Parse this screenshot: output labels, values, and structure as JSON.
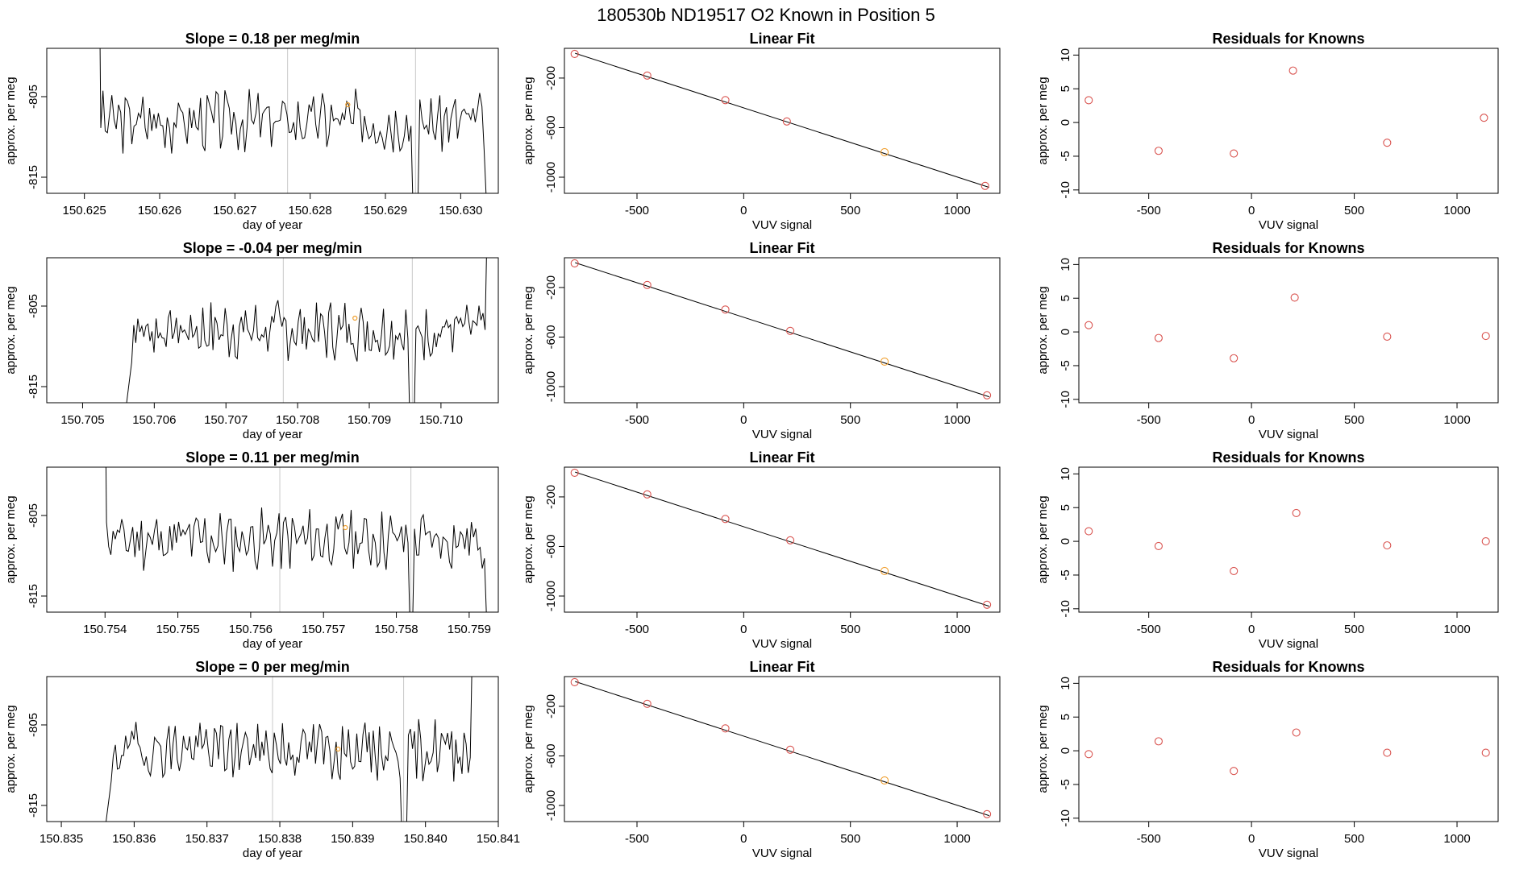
{
  "figure_title": "180530b      ND19517   O2 Known in Position  5",
  "colors": {
    "axis": "#000000",
    "trace": "#000000",
    "marker_red": "#d9534f",
    "marker_orange": "#f0a030",
    "vline": "#c8c8c8"
  },
  "chart_data": [
    {
      "type": "line",
      "title": "Slope =  0.18  per meg/min",
      "xlabel": "day of year",
      "ylabel": "approx. per meg",
      "xlim": [
        150.6245,
        150.6305
      ],
      "ylim": [
        -817,
        -799
      ],
      "xticks": [
        "150.626",
        "150.627",
        "150.628",
        "150.629",
        "150.630",
        "150.625"
      ],
      "xtick_values": [
        150.626,
        150.627,
        150.628,
        150.629,
        150.63,
        150.625
      ],
      "yticks": [
        -805,
        -815
      ],
      "vlines": [
        150.6277,
        150.6294
      ],
      "trace_start": 150.6251,
      "trace_end": 150.6304,
      "orange_point": {
        "x": 150.6285,
        "y": -806.0
      },
      "seed": 3
    },
    {
      "type": "scatter",
      "title": "Linear Fit",
      "xlabel": "VUV signal",
      "ylabel": "approx. per meg",
      "xlim": [
        -840,
        1200
      ],
      "ylim": [
        -1130,
        40
      ],
      "xticks": [
        -500,
        0,
        500,
        1000
      ],
      "yticks": [
        -200,
        -600,
        -1000
      ],
      "x": [
        -792,
        -452,
        -86,
        202,
        660,
        1131
      ],
      "y": [
        -5,
        -180,
        -378,
        -550,
        -798,
        -1070
      ],
      "orange_index": 4,
      "fit": [
        [
          -790,
          0
        ],
        [
          1150,
          -1082
        ]
      ]
    },
    {
      "type": "scatter",
      "title": "Residuals for Knowns",
      "xlabel": "VUV signal",
      "ylabel": "approx. per meg",
      "xlim": [
        -840,
        1200
      ],
      "ylim": [
        -10.5,
        11
      ],
      "xticks": [
        -500,
        0,
        500,
        1000
      ],
      "yticks": [
        10,
        5,
        0,
        -5,
        -10
      ],
      "x": [
        -792,
        -452,
        -86,
        202,
        660,
        1131
      ],
      "y": [
        3.3,
        -4.2,
        -4.6,
        7.7,
        -3.0,
        0.7
      ]
    },
    {
      "type": "line",
      "title": "Slope =  -0.04  per meg/min",
      "xlabel": "day of year",
      "ylabel": "approx. per meg",
      "xlim": [
        150.7045,
        150.7108
      ],
      "ylim": [
        -817,
        -799
      ],
      "xticks": [
        "150.705",
        "150.706",
        "150.707",
        "150.708",
        "150.709",
        "150.710"
      ],
      "xtick_values": [
        150.705,
        150.706,
        150.707,
        150.708,
        150.709,
        150.71
      ],
      "yticks": [
        -805,
        -815
      ],
      "vlines": [
        150.7078,
        150.7096
      ],
      "trace_start": 150.7056,
      "trace_end": 150.7107,
      "orange_point": {
        "x": 150.7088,
        "y": -806.5
      },
      "seed": 7
    },
    {
      "type": "scatter",
      "title": "Linear Fit",
      "xlabel": "VUV signal",
      "ylabel": "approx. per meg",
      "xlim": [
        -840,
        1200
      ],
      "ylim": [
        -1130,
        40
      ],
      "xticks": [
        -500,
        0,
        500,
        1000
      ],
      "yticks": [
        -200,
        -600,
        -1000
      ],
      "x": [
        -792,
        -452,
        -86,
        218,
        660,
        1140
      ],
      "y": [
        -5,
        -180,
        -378,
        -550,
        -798,
        -1070
      ],
      "orange_index": 4,
      "fit": [
        [
          -790,
          0
        ],
        [
          1150,
          -1082
        ]
      ]
    },
    {
      "type": "scatter",
      "title": "Residuals for Knowns",
      "xlabel": "VUV signal",
      "ylabel": "approx. per meg",
      "xlim": [
        -840,
        1200
      ],
      "ylim": [
        -10.5,
        11
      ],
      "xticks": [
        -500,
        0,
        500,
        1000
      ],
      "yticks": [
        10,
        5,
        0,
        -5,
        -10
      ],
      "x": [
        -792,
        -452,
        -86,
        210,
        660,
        1140
      ],
      "y": [
        1.0,
        -0.9,
        -3.9,
        5.1,
        -0.7,
        -0.6
      ]
    },
    {
      "type": "line",
      "title": "Slope =  0.11  per meg/min",
      "xlabel": "day of year",
      "ylabel": "approx. per meg",
      "xlim": [
        150.7532,
        150.7594
      ],
      "ylim": [
        -817,
        -799
      ],
      "xticks": [
        "150.754",
        "150.755",
        "150.756",
        "150.757",
        "150.758",
        "150.759"
      ],
      "xtick_values": [
        150.754,
        150.755,
        150.756,
        150.757,
        150.758,
        150.759
      ],
      "yticks": [
        -805,
        -815
      ],
      "vlines": [
        150.7564,
        150.7582
      ],
      "trace_start": 150.7539,
      "trace_end": 150.7593,
      "orange_point": {
        "x": 150.7573,
        "y": -806.5
      },
      "seed": 11
    },
    {
      "type": "scatter",
      "title": "Linear Fit",
      "xlabel": "VUV signal",
      "ylabel": "approx. per meg",
      "xlim": [
        -840,
        1200
      ],
      "ylim": [
        -1130,
        40
      ],
      "xticks": [
        -500,
        0,
        500,
        1000
      ],
      "yticks": [
        -200,
        -600,
        -1000
      ],
      "x": [
        -792,
        -452,
        -86,
        218,
        660,
        1140
      ],
      "y": [
        -5,
        -180,
        -378,
        -550,
        -798,
        -1070
      ],
      "orange_index": 4,
      "fit": [
        [
          -790,
          0
        ],
        [
          1150,
          -1082
        ]
      ]
    },
    {
      "type": "scatter",
      "title": "Residuals for Knowns",
      "xlabel": "VUV signal",
      "ylabel": "approx. per meg",
      "xlim": [
        -840,
        1200
      ],
      "ylim": [
        -10.5,
        11
      ],
      "xticks": [
        -500,
        0,
        500,
        1000
      ],
      "yticks": [
        10,
        5,
        0,
        -5,
        -10
      ],
      "x": [
        -792,
        -452,
        -86,
        218,
        660,
        1140
      ],
      "y": [
        1.5,
        -0.7,
        -4.4,
        4.2,
        -0.6,
        0.0
      ]
    },
    {
      "type": "line",
      "title": "Slope =  0  per meg/min",
      "xlabel": "day of year",
      "ylabel": "approx. per meg",
      "xlim": [
        150.8348,
        150.841
      ],
      "ylim": [
        -817,
        -799
      ],
      "xticks": [
        "150.835",
        "150.836",
        "150.837",
        "150.838",
        "150.839",
        "150.840",
        "150.841"
      ],
      "xtick_values": [
        150.835,
        150.836,
        150.837,
        150.838,
        150.839,
        150.84,
        150.841
      ],
      "yticks": [
        -805,
        -815
      ],
      "vlines": [
        150.8379,
        150.8397
      ],
      "trace_start": 150.8356,
      "trace_end": 150.8407,
      "orange_point": {
        "x": 150.8388,
        "y": -808.0
      },
      "seed": 19
    },
    {
      "type": "scatter",
      "title": "Linear Fit",
      "xlabel": "VUV signal",
      "ylabel": "approx. per meg",
      "xlim": [
        -840,
        1200
      ],
      "ylim": [
        -1130,
        40
      ],
      "xticks": [
        -500,
        0,
        500,
        1000
      ],
      "yticks": [
        -200,
        -600,
        -1000
      ],
      "x": [
        -792,
        -452,
        -86,
        218,
        660,
        1140
      ],
      "y": [
        -5,
        -180,
        -378,
        -550,
        -798,
        -1070
      ],
      "orange_index": 4,
      "fit": [
        [
          -790,
          0
        ],
        [
          1150,
          -1082
        ]
      ]
    },
    {
      "type": "scatter",
      "title": "Residuals for Knowns",
      "xlabel": "VUV signal",
      "ylabel": "approx. per meg",
      "xlim": [
        -840,
        1200
      ],
      "ylim": [
        -10.5,
        11
      ],
      "xticks": [
        -500,
        0,
        500,
        1000
      ],
      "yticks": [
        10,
        5,
        0,
        -5,
        -10
      ],
      "x": [
        -792,
        -452,
        -86,
        218,
        660,
        1140
      ],
      "y": [
        -0.5,
        1.4,
        -3.0,
        2.7,
        -0.3,
        -0.3
      ]
    }
  ]
}
